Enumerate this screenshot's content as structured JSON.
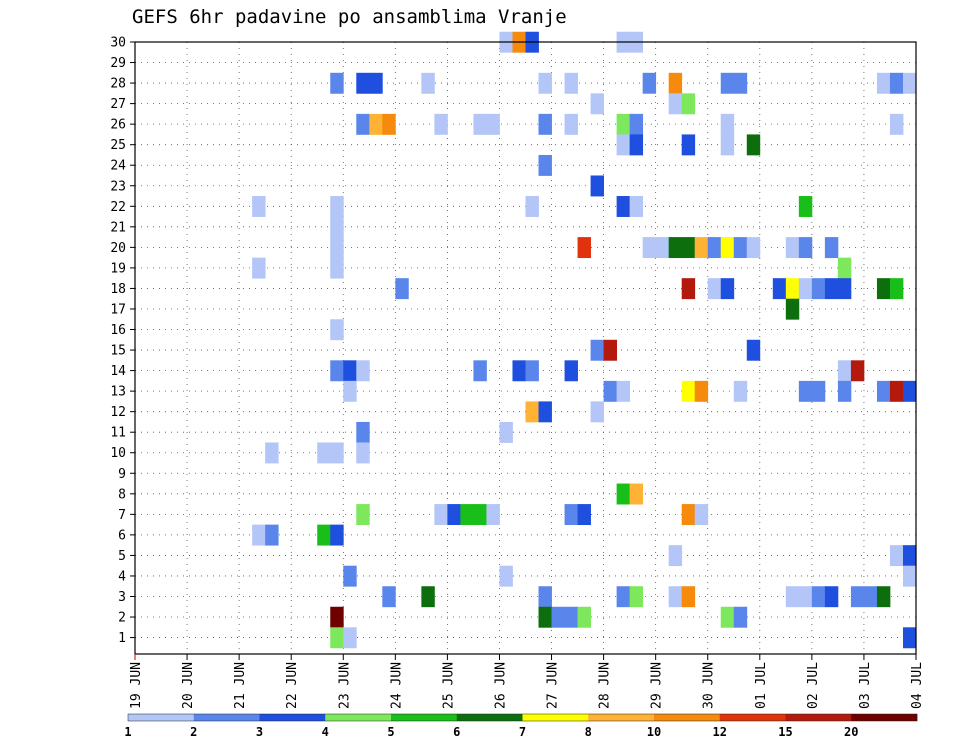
{
  "title": "GEFS 6hr padavine po ansamblima Vranje",
  "chart_data": {
    "type": "heatmap",
    "x_ticks": [
      "19 JUN",
      "20 JUN",
      "21 JUN",
      "22 JUN",
      "23 JUN",
      "24 JUN",
      "25 JUN",
      "26 JUN",
      "27 JUN",
      "28 JUN",
      "29 JUN",
      "30 JUN",
      "01 JUL",
      "02 JUL",
      "03 JUL",
      "04 JUL"
    ],
    "x_days": 15,
    "steps_per_day": 4,
    "y_ticks": [
      "1",
      "2",
      "3",
      "4",
      "5",
      "6",
      "7",
      "8",
      "9",
      "10",
      "11",
      "12",
      "13",
      "14",
      "15",
      "16",
      "17",
      "18",
      "19",
      "20",
      "21",
      "22",
      "23",
      "24",
      "25",
      "26",
      "27",
      "28",
      "29",
      "30"
    ],
    "ylim": [
      0,
      30
    ],
    "grid": true,
    "legend": {
      "labels": [
        "1",
        "2",
        "3",
        "4",
        "5",
        "6",
        "7",
        "8",
        "10",
        "12",
        "15",
        "20"
      ],
      "colors": [
        "#b3c6f7",
        "#5a86eb",
        "#1f4fde",
        "#7ee85c",
        "#19bf19",
        "#0d6e0d",
        "#ffff00",
        "#ffb233",
        "#f58a0d",
        "#e0330d",
        "#b31a0d",
        "#6e0000"
      ]
    },
    "cells": [
      [
        30,
        28,
        1
      ],
      [
        30,
        29,
        9
      ],
      [
        30,
        30,
        3
      ],
      [
        30,
        37,
        1
      ],
      [
        30,
        38,
        1
      ],
      [
        28,
        15,
        2
      ],
      [
        28,
        17,
        3
      ],
      [
        28,
        18,
        3
      ],
      [
        28,
        22,
        1
      ],
      [
        28,
        31,
        1
      ],
      [
        28,
        33,
        1
      ],
      [
        28,
        39,
        2
      ],
      [
        28,
        41,
        9
      ],
      [
        28,
        45,
        2
      ],
      [
        28,
        46,
        2
      ],
      [
        28,
        57,
        1
      ],
      [
        28,
        58,
        2
      ],
      [
        28,
        59,
        1
      ],
      [
        27,
        35,
        1
      ],
      [
        27,
        41,
        1
      ],
      [
        27,
        42,
        4
      ],
      [
        26,
        17,
        2
      ],
      [
        26,
        18,
        8
      ],
      [
        26,
        19,
        9
      ],
      [
        26,
        23,
        1
      ],
      [
        26,
        26,
        1
      ],
      [
        26,
        27,
        1
      ],
      [
        26,
        31,
        2
      ],
      [
        26,
        33,
        1
      ],
      [
        26,
        37,
        4
      ],
      [
        26,
        38,
        2
      ],
      [
        26,
        45,
        1
      ],
      [
        26,
        58,
        1
      ],
      [
        25,
        37,
        1
      ],
      [
        25,
        38,
        3
      ],
      [
        25,
        42,
        3
      ],
      [
        25,
        45,
        1
      ],
      [
        25,
        47,
        6
      ],
      [
        24,
        31,
        2
      ],
      [
        23,
        35,
        3
      ],
      [
        22,
        9,
        1
      ],
      [
        22,
        15,
        1
      ],
      [
        22,
        30,
        1
      ],
      [
        22,
        37,
        3
      ],
      [
        22,
        38,
        1
      ],
      [
        22,
        51,
        5
      ],
      [
        21,
        15,
        1
      ],
      [
        20,
        15,
        1
      ],
      [
        20,
        34,
        10
      ],
      [
        20,
        39,
        1
      ],
      [
        20,
        40,
        1
      ],
      [
        20,
        41,
        6
      ],
      [
        20,
        42,
        6
      ],
      [
        20,
        43,
        8
      ],
      [
        20,
        44,
        2
      ],
      [
        20,
        45,
        7
      ],
      [
        20,
        46,
        2
      ],
      [
        20,
        47,
        1
      ],
      [
        20,
        50,
        1
      ],
      [
        20,
        51,
        2
      ],
      [
        20,
        53,
        2
      ],
      [
        19,
        9,
        1
      ],
      [
        19,
        15,
        1
      ],
      [
        19,
        54,
        4
      ],
      [
        18,
        20,
        2
      ],
      [
        18,
        42,
        11
      ],
      [
        18,
        44,
        1
      ],
      [
        18,
        45,
        3
      ],
      [
        18,
        49,
        3
      ],
      [
        18,
        50,
        7
      ],
      [
        18,
        51,
        1
      ],
      [
        18,
        52,
        2
      ],
      [
        18,
        53,
        3
      ],
      [
        18,
        54,
        3
      ],
      [
        18,
        57,
        6
      ],
      [
        18,
        58,
        5
      ],
      [
        17,
        50,
        6
      ],
      [
        16,
        15,
        1
      ],
      [
        15,
        35,
        2
      ],
      [
        15,
        36,
        11
      ],
      [
        15,
        47,
        3
      ],
      [
        14,
        15,
        2
      ],
      [
        14,
        16,
        3
      ],
      [
        14,
        17,
        1
      ],
      [
        14,
        26,
        2
      ],
      [
        14,
        29,
        3
      ],
      [
        14,
        30,
        2
      ],
      [
        14,
        33,
        3
      ],
      [
        14,
        54,
        1
      ],
      [
        14,
        55,
        11
      ],
      [
        13,
        16,
        1
      ],
      [
        13,
        36,
        2
      ],
      [
        13,
        37,
        1
      ],
      [
        13,
        42,
        7
      ],
      [
        13,
        43,
        9
      ],
      [
        13,
        46,
        1
      ],
      [
        13,
        51,
        2
      ],
      [
        13,
        52,
        2
      ],
      [
        13,
        54,
        2
      ],
      [
        13,
        57,
        2
      ],
      [
        13,
        58,
        11
      ],
      [
        13,
        59,
        3
      ],
      [
        12,
        30,
        8
      ],
      [
        12,
        31,
        3
      ],
      [
        12,
        35,
        1
      ],
      [
        11,
        17,
        2
      ],
      [
        11,
        28,
        1
      ],
      [
        10,
        10,
        1
      ],
      [
        10,
        14,
        1
      ],
      [
        10,
        15,
        1
      ],
      [
        10,
        17,
        1
      ],
      [
        8,
        37,
        5
      ],
      [
        8,
        38,
        8
      ],
      [
        7,
        17,
        4
      ],
      [
        7,
        23,
        1
      ],
      [
        7,
        24,
        3
      ],
      [
        7,
        25,
        5
      ],
      [
        7,
        26,
        5
      ],
      [
        7,
        27,
        1
      ],
      [
        7,
        33,
        2
      ],
      [
        7,
        34,
        3
      ],
      [
        7,
        42,
        9
      ],
      [
        7,
        43,
        1
      ],
      [
        6,
        9,
        1
      ],
      [
        6,
        10,
        2
      ],
      [
        6,
        14,
        5
      ],
      [
        6,
        15,
        3
      ],
      [
        5,
        41,
        1
      ],
      [
        5,
        58,
        1
      ],
      [
        5,
        59,
        3
      ],
      [
        4,
        16,
        2
      ],
      [
        4,
        28,
        1
      ],
      [
        4,
        59,
        1
      ],
      [
        3,
        19,
        2
      ],
      [
        3,
        22,
        6
      ],
      [
        3,
        31,
        2
      ],
      [
        3,
        37,
        2
      ],
      [
        3,
        38,
        4
      ],
      [
        3,
        41,
        1
      ],
      [
        3,
        42,
        9
      ],
      [
        3,
        50,
        1
      ],
      [
        3,
        51,
        1
      ],
      [
        3,
        52,
        2
      ],
      [
        3,
        53,
        3
      ],
      [
        3,
        55,
        2
      ],
      [
        3,
        56,
        2
      ],
      [
        3,
        57,
        6
      ],
      [
        2,
        15,
        12
      ],
      [
        2,
        31,
        6
      ],
      [
        2,
        32,
        2
      ],
      [
        2,
        33,
        2
      ],
      [
        2,
        34,
        4
      ],
      [
        2,
        45,
        4
      ],
      [
        2,
        46,
        2
      ],
      [
        1,
        15,
        4
      ],
      [
        1,
        16,
        1
      ],
      [
        1,
        59,
        3
      ]
    ]
  }
}
